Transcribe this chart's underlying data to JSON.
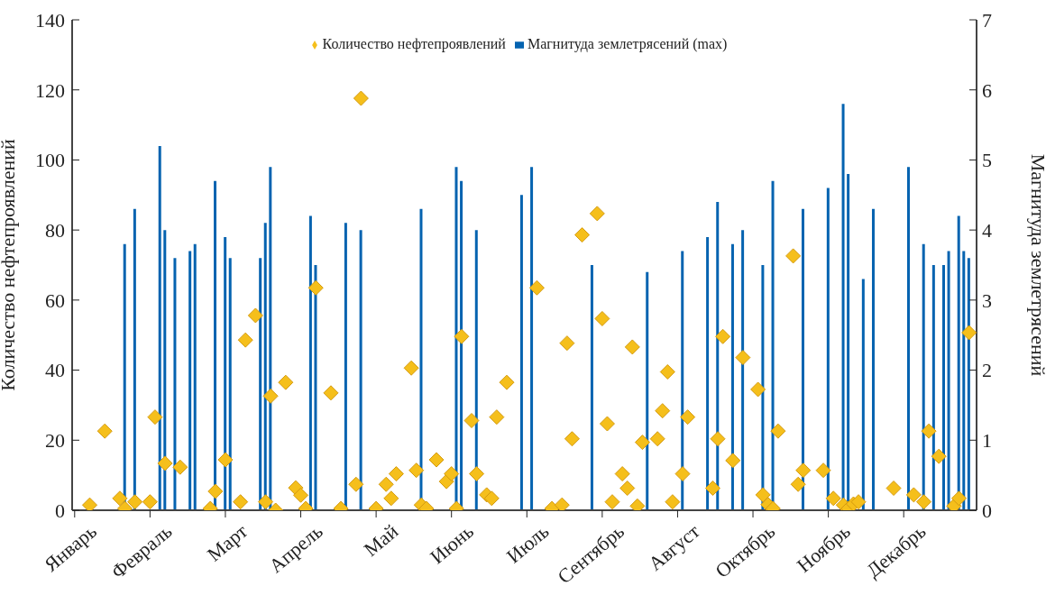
{
  "chart_data": {
    "type": "bar",
    "ylabel": "Количество нефтепроявлений",
    "y2label": "Магнитуда землетрясений",
    "legend": "top",
    "grid": false,
    "marker": "diamond",
    "categories": [
      "Январь",
      null,
      null,
      null,
      null,
      null,
      null,
      null,
      null,
      null,
      null,
      null,
      null,
      null,
      null,
      "Февраль",
      null,
      null,
      null,
      null,
      null,
      null,
      null,
      null,
      null,
      null,
      null,
      null,
      null,
      null,
      "Март",
      null,
      null,
      null,
      null,
      null,
      null,
      null,
      null,
      null,
      null,
      null,
      null,
      null,
      null,
      "Апрель",
      null,
      null,
      null,
      null,
      null,
      null,
      null,
      null,
      null,
      null,
      null,
      null,
      null,
      null,
      "Май",
      null,
      null,
      null,
      null,
      null,
      null,
      null,
      null,
      null,
      null,
      null,
      null,
      null,
      null,
      "Июнь",
      null,
      null,
      null,
      null,
      null,
      null,
      null,
      null,
      null,
      null,
      null,
      null,
      null,
      null,
      "Июль",
      null,
      null,
      null,
      null,
      null,
      null,
      null,
      null,
      null,
      null,
      null,
      null,
      null,
      null,
      "Сентябрь",
      null,
      null,
      null,
      null,
      null,
      null,
      null,
      null,
      null,
      null,
      null,
      null,
      null,
      null,
      "Август",
      null,
      null,
      null,
      null,
      null,
      null,
      null,
      null,
      null,
      null,
      null,
      null,
      null,
      null,
      "Октябрь",
      null,
      null,
      null,
      null,
      null,
      null,
      null,
      null,
      null,
      null,
      null,
      null,
      null,
      null,
      "Ноябрь",
      null,
      null,
      null,
      null,
      null,
      null,
      null,
      null,
      null,
      null,
      null,
      null,
      null,
      null,
      "Декабрь",
      null,
      null,
      null,
      null,
      null,
      null,
      null,
      null,
      null,
      null,
      null,
      null,
      null,
      null
    ],
    "ylim": [
      0,
      140
    ],
    "yticks": [
      0,
      20,
      40,
      60,
      80,
      100,
      120,
      140
    ],
    "y2lim": [
      0,
      7
    ],
    "y2ticks": [
      0,
      1,
      2,
      3,
      4,
      5,
      6,
      7
    ],
    "series": [
      {
        "name": "Магнитуда землетрясений (max)",
        "axis": "y2",
        "color": "#0563b0",
        "values": [
          null,
          null,
          null,
          null,
          null,
          null,
          null,
          null,
          null,
          null,
          3.8,
          null,
          4.3,
          null,
          null,
          null,
          null,
          5.2,
          4.0,
          null,
          3.6,
          null,
          null,
          3.7,
          3.8,
          null,
          null,
          null,
          4.7,
          null,
          3.9,
          3.6,
          null,
          null,
          null,
          null,
          null,
          3.6,
          4.1,
          4.9,
          null,
          null,
          null,
          null,
          null,
          null,
          null,
          4.2,
          3.5,
          null,
          null,
          null,
          null,
          null,
          4.1,
          null,
          null,
          4.0,
          null,
          null,
          null,
          null,
          null,
          null,
          null,
          null,
          null,
          null,
          null,
          4.3,
          null,
          null,
          null,
          null,
          null,
          null,
          4.9,
          4.7,
          null,
          null,
          4.0,
          null,
          null,
          null,
          null,
          null,
          null,
          null,
          null,
          4.5,
          null,
          4.9,
          null,
          null,
          null,
          null,
          null,
          null,
          null,
          null,
          null,
          null,
          null,
          3.5,
          null,
          null,
          null,
          null,
          null,
          null,
          null,
          null,
          null,
          null,
          3.4,
          null,
          null,
          null,
          null,
          null,
          null,
          3.7,
          null,
          null,
          null,
          null,
          3.9,
          null,
          4.4,
          null,
          null,
          3.8,
          null,
          4.0,
          null,
          null,
          null,
          3.5,
          null,
          4.7,
          null,
          null,
          null,
          null,
          null,
          4.3,
          null,
          null,
          null,
          null,
          4.6,
          null,
          null,
          5.8,
          4.8,
          null,
          null,
          3.3,
          null,
          4.3,
          null,
          null,
          null,
          null,
          null,
          null,
          4.9,
          null,
          null,
          3.8,
          null,
          3.5,
          null,
          3.5,
          3.7,
          null,
          4.2,
          3.7,
          3.6,
          null
        ]
      },
      {
        "name": "Количество нефтепроявлений",
        "type": "scatter",
        "color": "#f5bf1b",
        "values": [
          null,
          null,
          null,
          1.5,
          null,
          null,
          22.6,
          null,
          null,
          3.4,
          0.5,
          null,
          2.4,
          null,
          null,
          2.4,
          26.6,
          null,
          13.4,
          null,
          null,
          12.3,
          null,
          null,
          null,
          null,
          null,
          0.5,
          5.4,
          null,
          14.4,
          null,
          null,
          2.4,
          48.6,
          null,
          55.6,
          null,
          2.4,
          32.6,
          0,
          null,
          36.5,
          null,
          6.4,
          4.3,
          0.5,
          null,
          63.5,
          null,
          null,
          33.5,
          null,
          0.5,
          null,
          null,
          7.4,
          117.6,
          null,
          null,
          0.5,
          null,
          7.4,
          3.4,
          10.4,
          null,
          null,
          40.6,
          11.4,
          1.5,
          0.5,
          null,
          14.4,
          null,
          8.2,
          10.4,
          0.5,
          49.6,
          null,
          25.6,
          10.4,
          null,
          4.4,
          3.4,
          26.6,
          null,
          36.5,
          null,
          null,
          null,
          null,
          null,
          63.5,
          null,
          null,
          0.5,
          null,
          1.5,
          47.7,
          20.4,
          null,
          78.6,
          null,
          null,
          84.7,
          54.7,
          24.7,
          2.4,
          null,
          10.4,
          6.3,
          46.6,
          1.2,
          19.4,
          null,
          null,
          20.4,
          28.4,
          39.5,
          2.4,
          null,
          10.4,
          26.6,
          null,
          null,
          null,
          null,
          6.3,
          20.4,
          49.6,
          null,
          14.2,
          null,
          43.6,
          null,
          null,
          34.5,
          4.4,
          1.6,
          0.5,
          22.6,
          null,
          null,
          72.6,
          7.4,
          11.4,
          null,
          null,
          null,
          11.4,
          null,
          3.4,
          null,
          1.5,
          0.5,
          1.8,
          2.4,
          null,
          null,
          null,
          null,
          null,
          null,
          6.3,
          null,
          null,
          null,
          4.4,
          null,
          2.4,
          22.6,
          null,
          15.4,
          null,
          null,
          1.2,
          3.4,
          null,
          50.7,
          null
        ]
      }
    ]
  }
}
